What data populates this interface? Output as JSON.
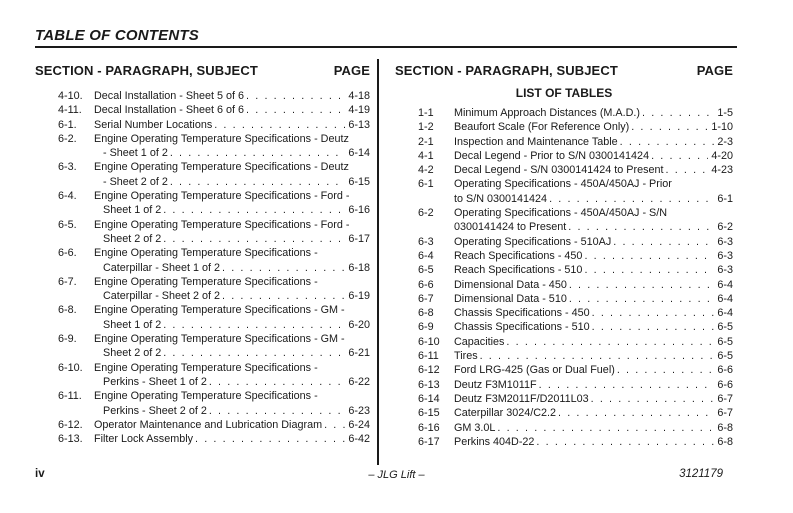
{
  "page": {
    "title": "TABLE OF CONTENTS",
    "footer": {
      "page_number": "iv",
      "center": "– JLG Lift –",
      "document_number": "3121179"
    }
  },
  "colors": {
    "text": "#1a1a1a",
    "rule": "#1a1a1a",
    "background": "#ffffff"
  },
  "columns": {
    "header": {
      "subject": "SECTION - PARAGRAPH, SUBJECT",
      "page": "PAGE"
    },
    "left": {
      "entries": [
        {
          "num": "4-10.",
          "lines": [
            "Decal Installation - Sheet 5 of 6"
          ],
          "page": "4-18"
        },
        {
          "num": "4-11.",
          "lines": [
            "Decal Installation - Sheet 6 of 6"
          ],
          "page": "4-19"
        },
        {
          "num": "6-1.",
          "lines": [
            "Serial Number Locations"
          ],
          "page": "6-13"
        },
        {
          "num": "6-2.",
          "lines": [
            "Engine Operating Temperature Specifications - Deutz",
            "- Sheet 1 of 2"
          ],
          "page": "6-14"
        },
        {
          "num": "6-3.",
          "lines": [
            "Engine Operating Temperature Specifications - Deutz",
            "- Sheet 2 of 2"
          ],
          "page": "6-15"
        },
        {
          "num": "6-4.",
          "lines": [
            "Engine Operating Temperature Specifications - Ford -",
            "Sheet 1 of 2"
          ],
          "page": "6-16"
        },
        {
          "num": "6-5.",
          "lines": [
            "Engine Operating Temperature Specifications - Ford -",
            "Sheet 2 of 2"
          ],
          "page": "6-17"
        },
        {
          "num": "6-6.",
          "lines": [
            "Engine Operating Temperature Specifications -",
            "Caterpillar - Sheet 1 of 2"
          ],
          "page": "6-18"
        },
        {
          "num": "6-7.",
          "lines": [
            "Engine Operating Temperature Specifications -",
            "Caterpillar - Sheet 2 of 2"
          ],
          "page": "6-19"
        },
        {
          "num": "6-8.",
          "lines": [
            "Engine Operating Temperature Specifications - GM -",
            "Sheet 1 of 2"
          ],
          "page": "6-20"
        },
        {
          "num": "6-9.",
          "lines": [
            "Engine Operating Temperature Specifications - GM -",
            "Sheet 2 of 2"
          ],
          "page": "6-21"
        },
        {
          "num": "6-10.",
          "lines": [
            "Engine Operating Temperature Specifications -",
            "Perkins - Sheet 1 of 2"
          ],
          "page": "6-22"
        },
        {
          "num": "6-11.",
          "lines": [
            "Engine Operating Temperature Specifications -",
            "Perkins - Sheet 2 of 2"
          ],
          "page": "6-23"
        },
        {
          "num": "6-12.",
          "lines": [
            "Operator Maintenance and Lubrication Diagram"
          ],
          "page": "6-24"
        },
        {
          "num": "6-13.",
          "lines": [
            "Filter Lock Assembly"
          ],
          "page": "6-42"
        }
      ]
    },
    "right": {
      "subtitle": "LIST OF TABLES",
      "entries": [
        {
          "num": "1-1",
          "lines": [
            "Minimum Approach Distances (M.A.D.)"
          ],
          "page": "1-5"
        },
        {
          "num": "1-2",
          "lines": [
            "Beaufort Scale (For Reference Only)"
          ],
          "page": "1-10"
        },
        {
          "num": "2-1",
          "lines": [
            "Inspection and Maintenance Table"
          ],
          "page": "2-3"
        },
        {
          "num": "4-1",
          "lines": [
            "Decal Legend - Prior to S/N 0300141424"
          ],
          "page": "4-20"
        },
        {
          "num": "4-2",
          "lines": [
            "Decal Legend - S/N 0300141424 to Present"
          ],
          "page": "4-23"
        },
        {
          "num": "6-1",
          "lines": [
            "Operating Specifications - 450A/450AJ - Prior",
            "to S/N 0300141424"
          ],
          "page": "6-1"
        },
        {
          "num": "6-2",
          "lines": [
            "Operating Specifications - 450A/450AJ - S/N",
            "0300141424 to Present"
          ],
          "page": "6-2"
        },
        {
          "num": "6-3",
          "lines": [
            "Operating Specifications - 510AJ"
          ],
          "page": "6-3"
        },
        {
          "num": "6-4",
          "lines": [
            "Reach Specifications - 450"
          ],
          "page": "6-3"
        },
        {
          "num": "6-5",
          "lines": [
            "Reach Specifications - 510"
          ],
          "page": "6-3"
        },
        {
          "num": "6-6",
          "lines": [
            "Dimensional Data - 450"
          ],
          "page": "6-4"
        },
        {
          "num": "6-7",
          "lines": [
            "Dimensional Data - 510"
          ],
          "page": "6-4"
        },
        {
          "num": "6-8",
          "lines": [
            "Chassis Specifications - 450"
          ],
          "page": "6-4"
        },
        {
          "num": "6-9",
          "lines": [
            "Chassis Specifications - 510"
          ],
          "page": "6-5"
        },
        {
          "num": "6-10",
          "lines": [
            "Capacities"
          ],
          "page": "6-5"
        },
        {
          "num": "6-11",
          "lines": [
            "Tires"
          ],
          "page": "6-5"
        },
        {
          "num": "6-12",
          "lines": [
            "Ford LRG-425 (Gas or Dual Fuel)"
          ],
          "page": "6-6"
        },
        {
          "num": "6-13",
          "lines": [
            "Deutz F3M1011F"
          ],
          "page": "6-6"
        },
        {
          "num": "6-14",
          "lines": [
            "Deutz F3M2011F/D2011L03"
          ],
          "page": "6-7"
        },
        {
          "num": "6-15",
          "lines": [
            "Caterpillar 3024/C2.2"
          ],
          "page": "6-7"
        },
        {
          "num": "6-16",
          "lines": [
            "GM 3.0L"
          ],
          "page": "6-8"
        },
        {
          "num": "6-17",
          "lines": [
            "Perkins 404D-22"
          ],
          "page": "6-8"
        }
      ]
    }
  }
}
